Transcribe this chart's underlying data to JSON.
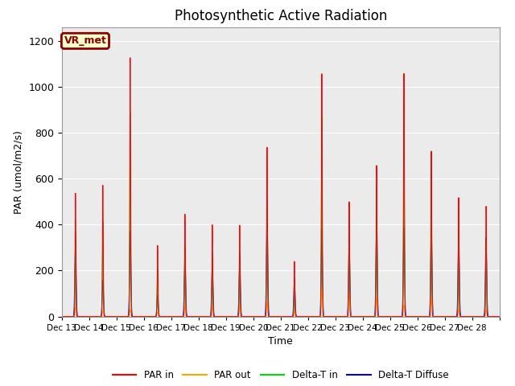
{
  "title": "Photosynthetic Active Radiation",
  "xlabel": "Time",
  "ylabel": "PAR (umol/m2/s)",
  "ylim": [
    0,
    1260
  ],
  "yticks": [
    0,
    200,
    400,
    600,
    800,
    1000,
    1200
  ],
  "label_text": "VR_met",
  "series": {
    "PAR_in": {
      "color": "#FF0000",
      "label": "PAR in"
    },
    "PAR_out": {
      "color": "#FFA500",
      "label": "PAR out"
    },
    "Delta_T_in": {
      "color": "#00DD00",
      "label": "Delta-T in"
    },
    "Delta_T_Diffuse": {
      "color": "#0000DD",
      "label": "Delta-T Diffuse"
    }
  },
  "xtick_labels": [
    "Dec 13",
    "Dec 14",
    "Dec 15",
    "Dec 16",
    "Dec 17",
    "Dec 18",
    "Dec 19",
    "Dec 20",
    "Dec 21",
    "Dec 22",
    "Dec 23",
    "Dec 24",
    "Dec 25",
    "Dec 26",
    "Dec 27",
    "Dec 28"
  ],
  "background_color": "#EBEBEB",
  "grid_color": "#FFFFFF",
  "title_fontsize": 12,
  "n_days": 16,
  "pts_per_day": 144,
  "day_peaks_in": [
    500,
    570,
    1090,
    310,
    450,
    430,
    390,
    760,
    220,
    1000,
    480,
    730,
    1090,
    730,
    470,
    500
  ],
  "day_peaks_out": [
    40,
    25,
    30,
    20,
    45,
    45,
    45,
    60,
    20,
    120,
    100,
    80,
    50,
    80,
    30,
    30
  ],
  "day_peaks_green": [
    340,
    410,
    860,
    200,
    310,
    300,
    270,
    530,
    140,
    820,
    480,
    630,
    870,
    630,
    350,
    340
  ],
  "day_peaks_blue": [
    330,
    160,
    370,
    100,
    280,
    245,
    255,
    450,
    155,
    380,
    330,
    430,
    390,
    390,
    370,
    340
  ],
  "sigma_in": 2.2,
  "sigma_out": 3.5,
  "sigma_blue": 3.5
}
